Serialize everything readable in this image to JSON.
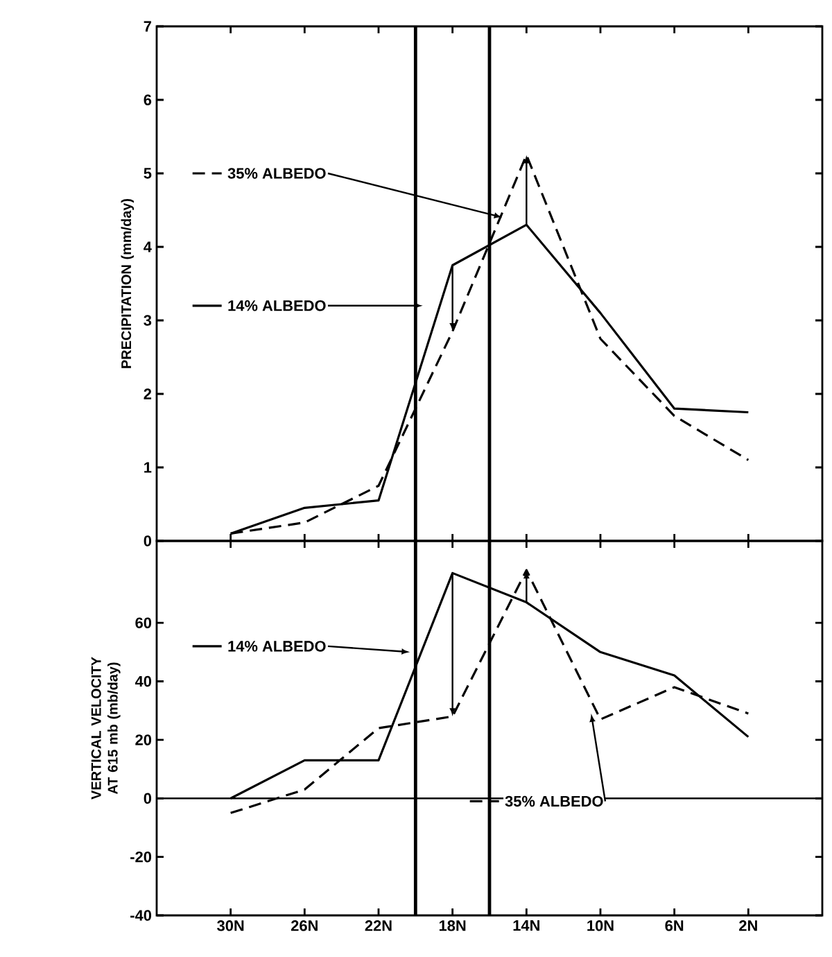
{
  "chart_data": [
    {
      "type": "line",
      "ylabel": "PRECIPITATION (mm/day)",
      "xlim": [
        34,
        -2
      ],
      "xticks": [
        {
          "value": 30,
          "label": null
        },
        {
          "value": 26,
          "label": null
        },
        {
          "value": 22,
          "label": null
        },
        {
          "value": 18,
          "label": null
        },
        {
          "value": 14,
          "label": null
        },
        {
          "value": 10,
          "label": null
        },
        {
          "value": 6,
          "label": null
        },
        {
          "value": 2,
          "label": null
        }
      ],
      "ylim": [
        0,
        7
      ],
      "yticks": [
        0,
        1,
        2,
        3,
        4,
        5,
        6,
        7
      ],
      "tick_labels": "y",
      "legend": "left",
      "x": [
        30,
        26,
        22,
        18,
        14,
        10,
        6,
        2
      ],
      "series": [
        {
          "name": "14% ALBEDO",
          "color": "#000000",
          "line_style": "solid",
          "values": [
            0.1,
            0.45,
            0.55,
            3.75,
            4.3,
            3.1,
            1.8,
            1.75
          ]
        },
        {
          "name": "35% ALBEDO",
          "color": "#000000",
          "line_style": "dashed",
          "values": [
            0.1,
            0.25,
            0.75,
            2.85,
            5.25,
            2.75,
            1.7,
            1.1
          ]
        }
      ],
      "ref_lines": [
        {
          "axis": "x",
          "value": 20,
          "color": "#000000"
        },
        {
          "axis": "x",
          "value": 16,
          "color": "#000000"
        }
      ]
    },
    {
      "type": "line",
      "ylabel": "VERTICAL VELOCITY AT 615 mb (mb/day)",
      "xlim": [
        34,
        -2
      ],
      "xticks": [
        {
          "value": 30,
          "label": "30N"
        },
        {
          "value": 26,
          "label": "26N"
        },
        {
          "value": 22,
          "label": "22N"
        },
        {
          "value": 18,
          "label": "18N"
        },
        {
          "value": 14,
          "label": "14N"
        },
        {
          "value": 10,
          "label": "10N"
        },
        {
          "value": 6,
          "label": "6N"
        },
        {
          "value": 2,
          "label": "2N"
        }
      ],
      "ylim": [
        -40,
        88
      ],
      "yticks": [
        -40,
        -20,
        0,
        20,
        40,
        60
      ],
      "legend": "left",
      "x": [
        30,
        26,
        22,
        18,
        14,
        10,
        6,
        2
      ],
      "series": [
        {
          "name": "14% ALBEDO",
          "color": "#000000",
          "line_style": "solid",
          "values": [
            0,
            13,
            13,
            77,
            67,
            50,
            42,
            21
          ]
        },
        {
          "name": "35% ALBEDO",
          "color": "#000000",
          "line_style": "dashed",
          "values": [
            -5,
            3,
            24,
            28,
            78,
            27,
            38,
            29
          ]
        }
      ],
      "ref_lines": [
        {
          "axis": "x",
          "value": 20,
          "color": "#000000"
        },
        {
          "axis": "x",
          "value": 16,
          "color": "#000000"
        },
        {
          "axis": "y",
          "value": 0,
          "color": "#000000"
        }
      ]
    }
  ]
}
